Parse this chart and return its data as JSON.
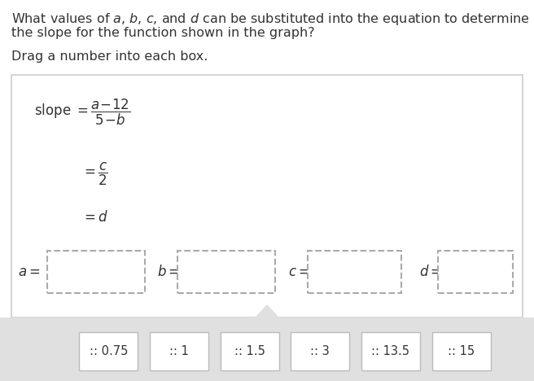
{
  "bg_color": "#ffffff",
  "panel_bg": "#ffffff",
  "panel_border": "#cccccc",
  "gray_bg": "#e0e0e0",
  "text_color": "#333333",
  "dash_color": "#aaaaaa",
  "drag_border": "#bbbbbb",
  "question_line1": "What values of $a$, $b$, $c$, and $d$ can be substituted into the equation to determine",
  "question_line2": "the slope for the function shown in the graph?",
  "drag_instruction": "Drag a number into each box.",
  "drag_values": [
    ":: 0.75",
    ":: 1",
    ":: 1.5",
    ":: 3",
    ":: 13.5",
    ":: 15"
  ],
  "var_labels": [
    "$a =$",
    "$b =$",
    "$c =$",
    "$d =$"
  ],
  "fig_w": 6.56,
  "fig_h": 4.68,
  "dpi": 100
}
